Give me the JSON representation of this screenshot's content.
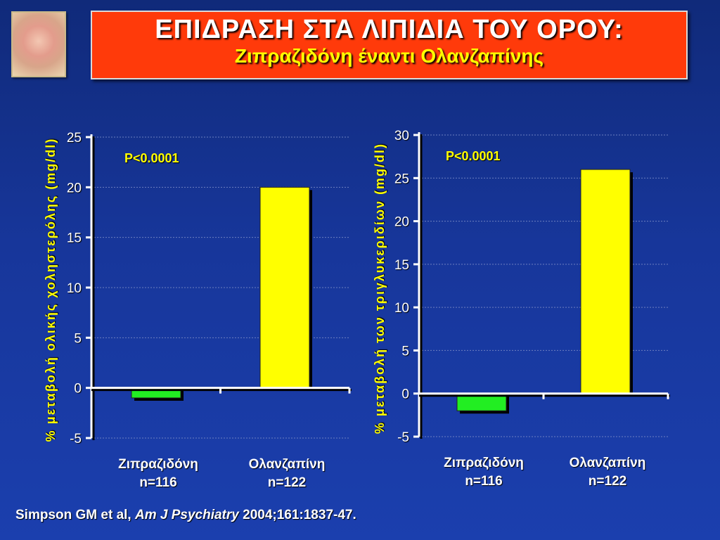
{
  "header": {
    "title": "ΕΠΙΔΡΑΣΗ ΣΤΑ ΛΙΠΙΔΙΑ ΤΟΥ ΟΡΟΥ:",
    "subtitle": "Ζιπραζιδόνη έναντι Ολανζαπίνης"
  },
  "citation": {
    "authors": "Simpson GM et al, ",
    "journal": "Am J Psychiatry",
    "ref": " 2004;161:1837-47."
  },
  "colors": {
    "background": "#1b3fae",
    "title_bg": "#ff3a0a",
    "ziprasidone_bar": "#22ee22",
    "olanzapine_bar": "#ffff00",
    "axis_label": "#ffff00"
  },
  "chart_data": [
    {
      "type": "bar",
      "ylabel": "% μεταβολή ολικής χοληστερόλης (mg/dl)",
      "annotation": "P<0.0001",
      "ylim": [
        -5,
        25
      ],
      "yticks": [
        -5,
        0,
        5,
        10,
        15,
        20,
        25
      ],
      "grid": true,
      "categories": [
        "Ζιπραζιδόνη",
        "Ολανζαπίνη"
      ],
      "category_n": [
        "n=116",
        "n=122"
      ],
      "values": [
        -1,
        20
      ]
    },
    {
      "type": "bar",
      "ylabel": "% μεταβολή των τριγλυκεριδίων (mg/dl)",
      "annotation": "P<0.0001",
      "ylim": [
        -5,
        30
      ],
      "yticks": [
        -5,
        0,
        5,
        10,
        15,
        20,
        25,
        30
      ],
      "grid": true,
      "categories": [
        "Ζιπραζιδόνη",
        "Ολανζαπίνη"
      ],
      "category_n": [
        "n=116",
        "n=122"
      ],
      "values": [
        -2,
        26
      ]
    }
  ]
}
